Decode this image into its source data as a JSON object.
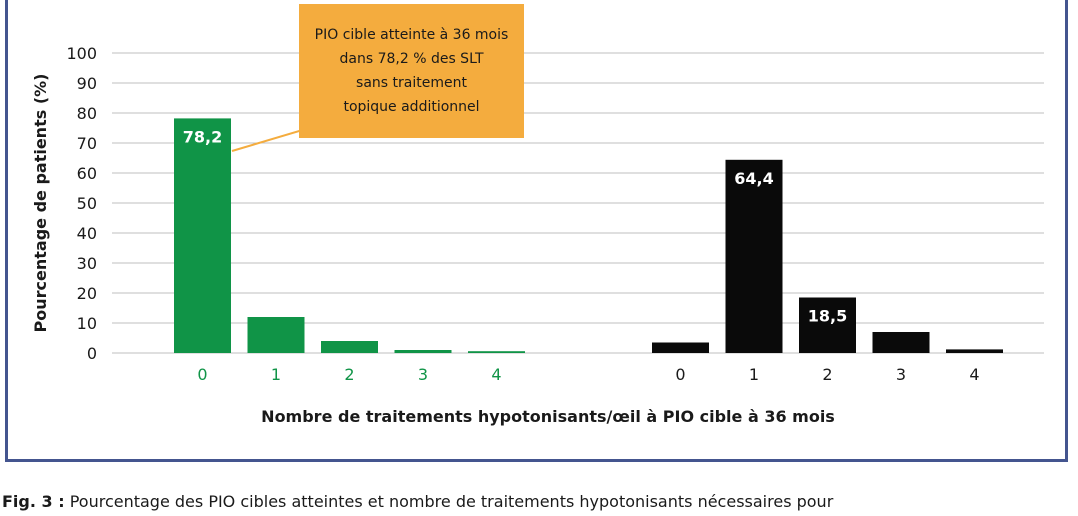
{
  "chart_data": {
    "type": "bar",
    "ylabel": "Pourcentage de patients (%)",
    "xlabel": "Nombre de traitements hypotonisants/œil à PIO cible à 36 mois",
    "ylim": [
      0,
      100
    ],
    "yticks": [
      "0",
      "10",
      "20",
      "30",
      "40",
      "50",
      "60",
      "70",
      "80",
      "90",
      "100"
    ],
    "grid": true,
    "groups": [
      {
        "color": "#109447",
        "categories": [
          "0",
          "1",
          "2",
          "3",
          "4"
        ],
        "values": [
          78.2,
          12,
          4,
          1,
          0.6
        ],
        "data_labels": [
          "78,2",
          "",
          "",
          "",
          ""
        ]
      },
      {
        "color": "#0a0a0a",
        "categories": [
          "0",
          "1",
          "2",
          "3",
          "4"
        ],
        "values": [
          3.5,
          64.4,
          18.5,
          7,
          1.2
        ],
        "data_labels": [
          "",
          "64,4",
          "18,5",
          "",
          ""
        ]
      }
    ],
    "annotation": {
      "lines": [
        "PIO cible atteinte à 36 mois",
        "dans 78,2 % des SLT",
        "sans traitement",
        "topique additionnel"
      ],
      "color": "#f4ac3e"
    }
  },
  "caption": {
    "label": "Fig. 3 :",
    "text": " Pourcentage des PIO cibles atteintes et nombre de traitements hypotonisants nécessaires pour"
  },
  "colors": {
    "frame": "#44558f",
    "grid": "#bfbfbf",
    "green_label": "#109447"
  }
}
